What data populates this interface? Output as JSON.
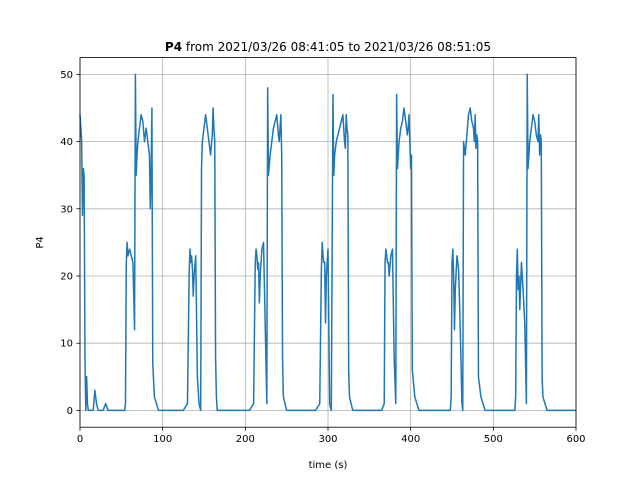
{
  "chart_data": {
    "type": "line",
    "title_bold": "P4",
    "title_rest": " from 2021/03/26 08:41:05 to 2021/03/26 08:51:05",
    "xlabel": "time (s)",
    "ylabel": "P4",
    "xlim": [
      0,
      600
    ],
    "ylim": [
      -2.5,
      52.5
    ],
    "xticks": [
      0,
      100,
      200,
      300,
      400,
      500,
      600
    ],
    "yticks": [
      0,
      10,
      20,
      30,
      40,
      50
    ],
    "grid": true,
    "line_color": "#1f77b4",
    "series": [
      {
        "x": [
          0,
          1,
          2,
          3,
          4,
          5,
          6,
          7,
          8,
          9,
          10,
          12,
          14,
          16,
          18,
          20,
          22,
          25,
          28,
          31,
          34,
          37,
          40,
          43,
          46,
          49,
          52,
          54,
          55,
          56,
          57,
          58,
          60,
          62,
          64,
          66,
          67,
          68,
          69,
          70,
          71,
          72,
          74,
          76,
          78,
          80,
          82,
          84,
          85,
          86,
          87,
          88,
          90,
          95,
          100,
          105,
          110,
          115,
          120,
          125,
          130,
          132,
          133,
          134,
          135,
          136,
          137,
          138,
          140,
          142,
          144,
          146,
          147,
          148,
          150,
          152,
          154,
          156,
          158,
          160,
          161,
          162,
          163,
          164,
          165,
          166,
          170,
          175,
          180,
          185,
          190,
          195,
          200,
          205,
          210,
          212,
          213,
          214,
          215,
          216,
          217,
          218,
          220,
          222,
          224,
          226,
          227,
          228,
          230,
          232,
          234,
          236,
          238,
          240,
          241,
          242,
          243,
          244,
          245,
          246,
          250,
          255,
          260,
          265,
          270,
          275,
          280,
          285,
          290,
          292,
          293,
          294,
          295,
          296,
          297,
          298,
          300,
          302,
          304,
          306,
          307,
          308,
          310,
          312,
          314,
          316,
          318,
          320,
          321,
          322,
          323,
          324,
          325,
          326,
          330,
          335,
          340,
          345,
          350,
          355,
          360,
          365,
          368,
          369,
          370,
          371,
          372,
          373,
          374,
          376,
          378,
          380,
          382,
          383,
          384,
          386,
          388,
          390,
          392,
          394,
          396,
          397,
          398,
          399,
          400,
          401,
          402,
          405,
          410,
          415,
          420,
          425,
          430,
          435,
          440,
          445,
          448,
          449,
          450,
          451,
          452,
          453,
          454,
          456,
          458,
          460,
          462,
          463,
          464,
          466,
          468,
          470,
          472,
          474,
          476,
          477,
          478,
          479,
          480,
          481,
          482,
          485,
          490,
          495,
          500,
          505,
          510,
          515,
          520,
          525,
          526,
          527,
          528,
          529,
          530,
          531,
          532,
          534,
          536,
          538,
          540,
          541,
          542,
          544,
          546,
          548,
          550,
          552,
          554,
          555,
          556,
          557,
          558,
          559,
          560,
          565,
          570,
          575,
          580,
          585,
          590,
          595,
          600
        ],
        "y": [
          44,
          42,
          40,
          29,
          36,
          35,
          8,
          0,
          5,
          1,
          0,
          0,
          0,
          0,
          3,
          1,
          0,
          0,
          0,
          1,
          0,
          0,
          0,
          0,
          0,
          0,
          0,
          0,
          1,
          22,
          25,
          23,
          24,
          23,
          22,
          12,
          50,
          35,
          38,
          40,
          41,
          42,
          44,
          43,
          40,
          42,
          40,
          38,
          30,
          35,
          45,
          7,
          2,
          0,
          0,
          0,
          0,
          0,
          0,
          0,
          1,
          20,
          24,
          22,
          23,
          21,
          17,
          20,
          23,
          5,
          1,
          0,
          36,
          40,
          42,
          44,
          42,
          40,
          38,
          41,
          45,
          42,
          40,
          8,
          2,
          0,
          0,
          0,
          0,
          0,
          0,
          0,
          0,
          0,
          1,
          22,
          24,
          23,
          21,
          22,
          16,
          20,
          24,
          25,
          13,
          1,
          48,
          35,
          38,
          40,
          42,
          43,
          44,
          41,
          40,
          42,
          44,
          38,
          8,
          2,
          0,
          0,
          0,
          0,
          0,
          0,
          0,
          0,
          1,
          21,
          25,
          23,
          22,
          22,
          13,
          20,
          24,
          1,
          0,
          47,
          35,
          38,
          40,
          41,
          42,
          43,
          44,
          40,
          39,
          44,
          42,
          41,
          6,
          2,
          0,
          0,
          0,
          0,
          0,
          0,
          0,
          0,
          1,
          22,
          24,
          23,
          22,
          22,
          20,
          23,
          24,
          8,
          1,
          47,
          36,
          40,
          42,
          43,
          45,
          43,
          41,
          42,
          44,
          40,
          36,
          38,
          6,
          2,
          0,
          0,
          0,
          0,
          0,
          0,
          0,
          0,
          0,
          2,
          22,
          24,
          20,
          12,
          18,
          23,
          21,
          12,
          1,
          0,
          40,
          38,
          41,
          44,
          45,
          43,
          42,
          40,
          44,
          39,
          41,
          40,
          5,
          2,
          0,
          0,
          0,
          0,
          0,
          0,
          0,
          0,
          0,
          2,
          20,
          24,
          18,
          20,
          15,
          22,
          18,
          13,
          1,
          50,
          36,
          40,
          42,
          44,
          43,
          41,
          40,
          44,
          38,
          41,
          40,
          5,
          2,
          0,
          0,
          0,
          0,
          0,
          0,
          0,
          0
        ]
      }
    ]
  }
}
